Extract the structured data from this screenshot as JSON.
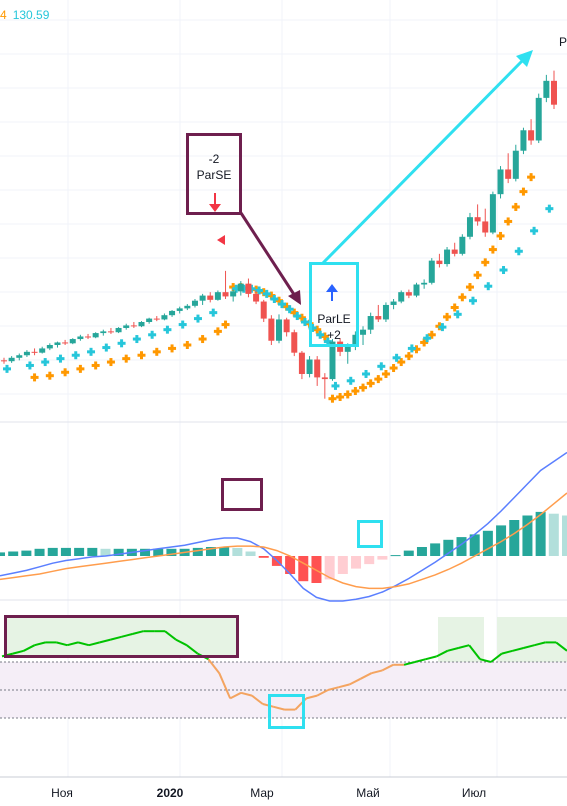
{
  "header": {
    "value_a": "4",
    "value_b": "130.59"
  },
  "corner_label": "P",
  "chart_data": [
    {
      "type": "candlestick",
      "panel": "price",
      "overlay_series": [
        {
          "name": "parabolic-sar-short",
          "color": "#ff9800"
        },
        {
          "name": "parabolic-sar-long",
          "color": "#26c6da"
        }
      ],
      "candles": [
        [
          97.0,
          97.3,
          96.6,
          96.9
        ],
        [
          96.9,
          97.5,
          96.7,
          97.3
        ],
        [
          97.3,
          97.8,
          97.0,
          97.6
        ],
        [
          97.6,
          98.2,
          97.4,
          98.0
        ],
        [
          98.0,
          98.4,
          97.6,
          97.9
        ],
        [
          97.9,
          98.6,
          97.8,
          98.4
        ],
        [
          98.4,
          99.0,
          98.2,
          98.8
        ],
        [
          98.8,
          99.2,
          98.5,
          99.1
        ],
        [
          99.1,
          99.4,
          98.8,
          99.0
        ],
        [
          99.0,
          99.6,
          98.9,
          99.5
        ],
        [
          99.5,
          100.0,
          99.3,
          99.8
        ],
        [
          99.8,
          100.1,
          99.5,
          99.7
        ],
        [
          99.7,
          100.3,
          99.6,
          100.2
        ],
        [
          100.2,
          100.6,
          99.9,
          100.4
        ],
        [
          100.4,
          100.8,
          100.1,
          100.3
        ],
        [
          100.3,
          100.9,
          100.2,
          100.8
        ],
        [
          100.8,
          101.3,
          100.6,
          101.1
        ],
        [
          101.1,
          101.5,
          100.8,
          101.0
        ],
        [
          101.0,
          101.6,
          100.9,
          101.5
        ],
        [
          101.5,
          102.0,
          101.3,
          101.9
        ],
        [
          101.9,
          102.2,
          101.6,
          101.8
        ],
        [
          101.8,
          102.5,
          101.7,
          102.3
        ],
        [
          102.3,
          102.9,
          102.1,
          102.8
        ],
        [
          102.8,
          103.3,
          102.5,
          103.1
        ],
        [
          103.1,
          103.6,
          102.9,
          103.4
        ],
        [
          103.4,
          104.2,
          103.2,
          104.0
        ],
        [
          104.0,
          104.8,
          103.5,
          104.6
        ],
        [
          104.6,
          105.0,
          103.8,
          104.1
        ],
        [
          104.1,
          105.2,
          104.0,
          105.0
        ],
        [
          105.0,
          107.5,
          104.2,
          104.5
        ],
        [
          104.5,
          105.3,
          103.9,
          105.1
        ],
        [
          105.1,
          106.3,
          104.6,
          106.0
        ],
        [
          106.0,
          106.6,
          104.4,
          104.8
        ],
        [
          104.8,
          105.2,
          103.6,
          103.9
        ],
        [
          103.9,
          104.1,
          101.5,
          101.9
        ],
        [
          101.9,
          102.3,
          98.8,
          99.3
        ],
        [
          99.3,
          102.4,
          99.0,
          101.8
        ],
        [
          101.8,
          102.0,
          99.8,
          100.3
        ],
        [
          100.3,
          100.6,
          97.5,
          97.9
        ],
        [
          97.9,
          98.1,
          94.8,
          95.4
        ],
        [
          95.4,
          97.5,
          95.0,
          97.1
        ],
        [
          97.1,
          97.5,
          94.0,
          95.0
        ],
        [
          95.0,
          95.5,
          92.5,
          94.8
        ],
        [
          94.8,
          99.5,
          94.6,
          99.2
        ],
        [
          99.2,
          99.6,
          97.5,
          98.0
        ],
        [
          98.0,
          99.0,
          96.6,
          98.6
        ],
        [
          98.6,
          100.4,
          98.2,
          100.0
        ],
        [
          100.0,
          101.0,
          98.8,
          100.6
        ],
        [
          100.6,
          102.6,
          100.1,
          102.2
        ],
        [
          102.2,
          103.5,
          101.5,
          101.8
        ],
        [
          101.8,
          103.8,
          101.5,
          103.5
        ],
        [
          103.5,
          104.2,
          103.0,
          103.9
        ],
        [
          103.9,
          105.2,
          103.7,
          105.0
        ],
        [
          105.0,
          105.3,
          104.3,
          104.6
        ],
        [
          104.6,
          106.1,
          104.4,
          105.9
        ],
        [
          105.9,
          106.5,
          105.4,
          106.1
        ],
        [
          106.1,
          109.0,
          105.9,
          108.7
        ],
        [
          108.7,
          109.5,
          107.9,
          108.3
        ],
        [
          108.3,
          110.3,
          108.0,
          110.0
        ],
        [
          110.0,
          110.8,
          109.2,
          109.5
        ],
        [
          109.5,
          111.8,
          109.3,
          111.5
        ],
        [
          111.5,
          114.3,
          111.2,
          113.8
        ],
        [
          113.8,
          115.3,
          112.8,
          113.3
        ],
        [
          113.3,
          114.8,
          111.5,
          112.0
        ],
        [
          112.0,
          116.8,
          111.8,
          116.5
        ],
        [
          116.5,
          119.8,
          116.0,
          119.4
        ],
        [
          119.4,
          121.3,
          117.8,
          118.3
        ],
        [
          118.3,
          122.3,
          118.0,
          121.6
        ],
        [
          121.6,
          124.3,
          121.2,
          124.0
        ],
        [
          124.0,
          125.3,
          122.3,
          122.8
        ],
        [
          122.8,
          128.3,
          122.5,
          127.8
        ],
        [
          127.8,
          130.5,
          127.3,
          129.8
        ],
        [
          129.8,
          131.0,
          126.5,
          127.0
        ]
      ],
      "sar_short": [
        [
          4,
          95.0
        ],
        [
          6,
          95.2
        ],
        [
          8,
          95.6
        ],
        [
          10,
          96.0
        ],
        [
          12,
          96.4
        ],
        [
          14,
          96.8
        ],
        [
          16,
          97.2
        ],
        [
          18,
          97.6
        ],
        [
          20,
          98.0
        ],
        [
          22,
          98.4
        ],
        [
          24,
          98.8
        ],
        [
          26,
          99.5
        ],
        [
          28,
          100.4
        ],
        [
          29,
          101.2
        ],
        [
          30,
          105.6
        ],
        [
          31,
          105.6
        ],
        [
          32,
          105.5
        ],
        [
          33,
          105.3
        ],
        [
          34,
          105.0
        ],
        [
          35,
          104.6
        ],
        [
          36,
          104.0
        ],
        [
          37,
          103.3
        ],
        [
          38,
          102.6
        ],
        [
          39,
          102.0
        ],
        [
          40,
          101.3
        ],
        [
          41,
          100.6
        ],
        [
          42,
          99.8
        ],
        [
          43,
          92.5
        ],
        [
          44,
          92.7
        ],
        [
          45,
          93.0
        ],
        [
          46,
          93.4
        ],
        [
          47,
          93.8
        ],
        [
          48,
          94.3
        ],
        [
          49,
          94.8
        ],
        [
          50,
          95.4
        ],
        [
          51,
          96.1
        ],
        [
          52,
          96.8
        ],
        [
          53,
          97.5
        ],
        [
          54,
          98.3
        ],
        [
          55,
          99.1
        ],
        [
          56,
          100.0
        ],
        [
          57,
          101.0
        ],
        [
          58,
          102.1
        ],
        [
          59,
          103.2
        ],
        [
          60,
          104.4
        ],
        [
          61,
          105.6
        ],
        [
          62,
          107.0
        ],
        [
          63,
          108.5
        ],
        [
          64,
          110.0
        ],
        [
          65,
          111.6
        ],
        [
          66,
          113.3
        ],
        [
          67,
          115.0
        ],
        [
          68,
          116.8
        ],
        [
          69,
          118.5
        ]
      ],
      "sar_long": [
        [
          0,
          96.0
        ],
        [
          3,
          96.4
        ],
        [
          5,
          96.8
        ],
        [
          7,
          97.2
        ],
        [
          9,
          97.6
        ],
        [
          11,
          98.0
        ],
        [
          13,
          98.5
        ],
        [
          15,
          99.0
        ],
        [
          17,
          99.5
        ],
        [
          19,
          100.0
        ],
        [
          21,
          100.6
        ],
        [
          23,
          101.2
        ],
        [
          25,
          101.9
        ],
        [
          27,
          102.6
        ],
        [
          30,
          105.4
        ],
        [
          31,
          105.4
        ],
        [
          32,
          105.4
        ],
        [
          33,
          105.2
        ],
        [
          34,
          104.8
        ],
        [
          35,
          104.2
        ],
        [
          36,
          103.6
        ],
        [
          37,
          103.0
        ],
        [
          38,
          102.2
        ],
        [
          39,
          101.5
        ],
        [
          40,
          100.8
        ],
        [
          41,
          100.0
        ],
        [
          42,
          99.2
        ],
        [
          43,
          94.0
        ],
        [
          45,
          94.6
        ],
        [
          47,
          95.4
        ],
        [
          49,
          96.3
        ],
        [
          51,
          97.3
        ],
        [
          53,
          98.4
        ],
        [
          55,
          99.6
        ],
        [
          57,
          100.9
        ],
        [
          59,
          102.4
        ],
        [
          61,
          104.0
        ],
        [
          63,
          105.7
        ],
        [
          65,
          107.6
        ],
        [
          67,
          109.8
        ],
        [
          69,
          112.2
        ],
        [
          71,
          114.8
        ]
      ],
      "annotations": [
        {
          "text": "-2",
          "text2": "ParSE"
        },
        {
          "text": "ParLE",
          "text2": "+2"
        }
      ]
    },
    {
      "type": "macd",
      "panel": "macd",
      "series": [
        {
          "name": "macd-line",
          "color": "#5b7fff"
        },
        {
          "name": "signal-line",
          "color": "#ff9d4d"
        }
      ],
      "macd_line": [
        -2.2,
        -1.9,
        -1.6,
        -1.2,
        -0.8,
        -0.5,
        -0.3,
        -0.1,
        0.0,
        0.2,
        0.4,
        0.6,
        0.8,
        1.0,
        1.2,
        1.5,
        1.8,
        2.0,
        2.0,
        1.6,
        0.8,
        -0.5,
        -2.0,
        -3.6,
        -4.6,
        -5.0,
        -5.0,
        -4.8,
        -4.5,
        -4.0,
        -3.3,
        -2.5,
        -1.6,
        -0.7,
        0.3,
        1.3,
        2.4,
        3.6,
        5.0,
        6.5,
        8.0,
        9.5,
        10.5,
        11.5
      ],
      "signal_line": [
        -2.6,
        -2.4,
        -2.2,
        -2.0,
        -1.7,
        -1.4,
        -1.2,
        -1.0,
        -0.8,
        -0.6,
        -0.4,
        -0.2,
        0.0,
        0.2,
        0.4,
        0.6,
        0.8,
        1.0,
        1.1,
        1.1,
        1.0,
        0.6,
        0.0,
        -0.8,
        -1.6,
        -2.4,
        -3.0,
        -3.4,
        -3.6,
        -3.6,
        -3.4,
        -3.1,
        -2.6,
        -2.1,
        -1.5,
        -0.8,
        0.0,
        0.8,
        1.6,
        2.5,
        3.5,
        4.6,
        5.8,
        7.0
      ],
      "histogram": [
        0.4,
        0.5,
        0.6,
        0.8,
        0.9,
        0.9,
        0.9,
        0.9,
        0.8,
        0.8,
        0.8,
        0.8,
        0.8,
        0.8,
        0.8,
        0.9,
        1.0,
        1.0,
        0.9,
        0.5,
        -0.2,
        -1.1,
        -2.0,
        -2.8,
        -3.0,
        -2.6,
        -2.0,
        -1.4,
        -0.9,
        -0.4,
        0.1,
        0.6,
        1.0,
        1.4,
        1.8,
        2.1,
        2.4,
        2.8,
        3.4,
        4.0,
        4.5,
        4.9,
        4.7,
        4.5
      ]
    },
    {
      "type": "line",
      "panel": "oscillator",
      "series": [
        {
          "name": "oscillator",
          "color_high": "#00c200",
          "color_low": "#f4a460"
        }
      ],
      "upper_level": 60,
      "lower_level": 40,
      "values": [
        62,
        63,
        64,
        66,
        67,
        67,
        66,
        67,
        66,
        67,
        68,
        69,
        70,
        71,
        71,
        71,
        68,
        66,
        63,
        61,
        56,
        47,
        49,
        48,
        45,
        44,
        43,
        43,
        47,
        48,
        50,
        51,
        52,
        54,
        56,
        57,
        59,
        59,
        60,
        61,
        62,
        64,
        65,
        66,
        61,
        60,
        63,
        64,
        65,
        66,
        67,
        67,
        64
      ]
    }
  ],
  "x_axis": {
    "labels": [
      {
        "text": "Ноя",
        "bold": false
      },
      {
        "text": "2020",
        "bold": true
      },
      {
        "text": "Мар",
        "bold": false
      },
      {
        "text": "Май",
        "bold": false
      },
      {
        "text": "Июл",
        "bold": false
      }
    ]
  }
}
